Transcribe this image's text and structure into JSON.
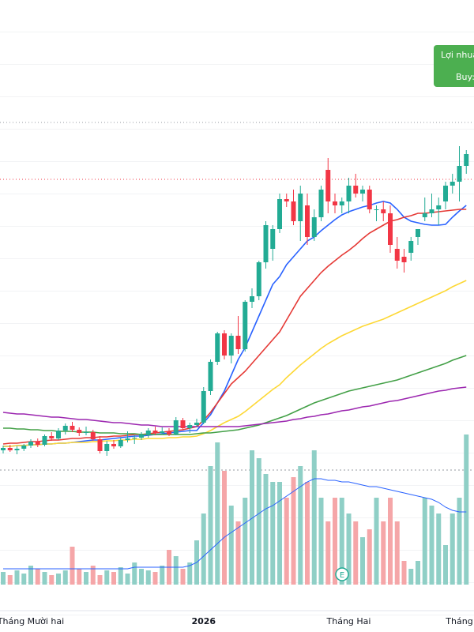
{
  "chart_data": {
    "type": "candlestick",
    "up_color": "#22ab94",
    "down_color": "#f23645",
    "volume_up_color": "#8fcfc6",
    "volume_down_color": "#f5a6a8",
    "ylim": [
      0,
      60
    ],
    "volume_ylim": [
      0,
      370
    ],
    "categories": [
      null,
      null,
      null,
      null,
      "Tháng Mười hai",
      null,
      null,
      null,
      null,
      null,
      null,
      null,
      null,
      null,
      null,
      null,
      null,
      null,
      null,
      null,
      null,
      null,
      null,
      null,
      null,
      null,
      null,
      null,
      null,
      "2026",
      null,
      null,
      null,
      null,
      null,
      null,
      null,
      null,
      null,
      null,
      null,
      null,
      null,
      null,
      null,
      null,
      null,
      null,
      null,
      null,
      "Tháng Hai",
      null,
      null,
      null,
      null,
      null,
      null,
      null,
      null,
      null,
      null,
      null,
      null,
      null,
      null,
      null,
      "Tháng",
      null
    ],
    "ohlc": [
      [
        3.0,
        3.6,
        2.6,
        3.3
      ],
      [
        3.3,
        3.7,
        2.8,
        3.0
      ],
      [
        3.0,
        3.5,
        2.5,
        3.2
      ],
      [
        3.2,
        3.8,
        2.9,
        3.6
      ],
      [
        3.6,
        4.4,
        3.3,
        4.1
      ],
      [
        4.1,
        4.5,
        3.4,
        3.7
      ],
      [
        3.7,
        5.0,
        3.5,
        4.8
      ],
      [
        4.8,
        5.3,
        4.2,
        4.5
      ],
      [
        4.5,
        5.8,
        4.3,
        5.5
      ],
      [
        5.5,
        6.4,
        5.0,
        6.1
      ],
      [
        6.1,
        6.6,
        5.3,
        5.6
      ],
      [
        5.6,
        5.9,
        4.8,
        5.2
      ],
      [
        5.2,
        6.0,
        4.9,
        5.3
      ],
      [
        5.3,
        5.6,
        4.2,
        4.4
      ],
      [
        4.4,
        4.8,
        2.6,
        2.9
      ],
      [
        2.9,
        4.2,
        2.3,
        3.8
      ],
      [
        3.8,
        4.3,
        3.2,
        3.5
      ],
      [
        3.5,
        4.6,
        3.3,
        4.3
      ],
      [
        4.3,
        5.4,
        4.0,
        4.5
      ],
      [
        4.5,
        4.9,
        3.8,
        4.6
      ],
      [
        4.6,
        5.3,
        4.3,
        5.0
      ],
      [
        5.0,
        5.8,
        4.6,
        5.5
      ],
      [
        5.5,
        6.0,
        4.9,
        5.2
      ],
      [
        5.2,
        5.9,
        5.0,
        5.4
      ],
      [
        5.4,
        5.8,
        4.8,
        5.0
      ],
      [
        5.0,
        7.2,
        4.9,
        6.8
      ],
      [
        6.8,
        7.1,
        5.6,
        5.8
      ],
      [
        5.8,
        6.5,
        5.2,
        6.2
      ],
      [
        6.2,
        7.0,
        5.9,
        6.5
      ],
      [
        6.5,
        11.0,
        6.3,
        10.5
      ],
      [
        10.5,
        14.5,
        10.0,
        14.2
      ],
      [
        14.2,
        18.0,
        13.8,
        17.8
      ],
      [
        17.8,
        18.2,
        14.5,
        15.0
      ],
      [
        15.0,
        17.8,
        14.0,
        17.5
      ],
      [
        17.5,
        20.0,
        15.2,
        15.8
      ],
      [
        15.8,
        22.0,
        15.5,
        21.8
      ],
      [
        21.8,
        23.5,
        21.0,
        22.5
      ],
      [
        22.5,
        27.0,
        22.0,
        26.8
      ],
      [
        26.8,
        32.0,
        26.0,
        31.5
      ],
      [
        28.5,
        31.5,
        27.0,
        31.0
      ],
      [
        31.0,
        35.5,
        30.5,
        34.8
      ],
      [
        34.8,
        35.5,
        33.8,
        34.5
      ],
      [
        34.5,
        36.0,
        31.5,
        32.0
      ],
      [
        32.0,
        36.5,
        29.5,
        35.5
      ],
      [
        34.0,
        35.5,
        29.0,
        30.0
      ],
      [
        30.0,
        33.5,
        29.5,
        32.5
      ],
      [
        32.5,
        36.5,
        32.0,
        36.0
      ],
      [
        38.5,
        40.0,
        33.0,
        34.5
      ],
      [
        34.5,
        35.5,
        33.0,
        34.0
      ],
      [
        34.0,
        35.0,
        33.0,
        34.5
      ],
      [
        34.5,
        37.5,
        33.0,
        36.5
      ],
      [
        36.5,
        38.0,
        35.0,
        35.5
      ],
      [
        35.5,
        36.5,
        34.5,
        36.0
      ],
      [
        36.0,
        36.5,
        33.0,
        33.5
      ],
      [
        33.5,
        34.0,
        32.0,
        33.5
      ],
      [
        33.5,
        34.5,
        32.0,
        33.0
      ],
      [
        33.0,
        34.0,
        28.0,
        29.0
      ],
      [
        28.5,
        30.0,
        26.0,
        27.0
      ],
      [
        27.5,
        28.5,
        25.5,
        26.8
      ],
      [
        28.0,
        30.0,
        27.0,
        29.5
      ],
      [
        30.0,
        31.0,
        29.0,
        31.0
      ],
      [
        32.5,
        35.0,
        32.0,
        33.0
      ],
      [
        33.0,
        35.5,
        32.5,
        33.5
      ],
      [
        33.5,
        35.0,
        31.5,
        34.0
      ],
      [
        34.5,
        37.0,
        33.5,
        36.5
      ],
      [
        36.5,
        38.0,
        35.5,
        37.0
      ],
      [
        37.0,
        41.5,
        34.5,
        39.0
      ],
      [
        39.0,
        41.0,
        38.0,
        40.5
      ]
    ],
    "volume": [
      8,
      6,
      9,
      7,
      12,
      10,
      8,
      6,
      7,
      9,
      24,
      10,
      8,
      12,
      6,
      9,
      8,
      11,
      7,
      14,
      10,
      9,
      8,
      12,
      22,
      18,
      10,
      14,
      28,
      45,
      75,
      90,
      72,
      50,
      40,
      55,
      85,
      80,
      70,
      65,
      65,
      55,
      68,
      75,
      65,
      85,
      55,
      40,
      55,
      55,
      45,
      40,
      30,
      35,
      55,
      40,
      55,
      40,
      15,
      10,
      15,
      55,
      50,
      45,
      25,
      45,
      55,
      95
    ],
    "series": [
      {
        "color": "#2962ff",
        "values": [
          3.5,
          3.5,
          3.6,
          3.6,
          3.7,
          3.7,
          3.8,
          3.8,
          3.9,
          3.9,
          4.0,
          4.1,
          4.2,
          4.3,
          4.3,
          4.4,
          4.5,
          4.6,
          4.7,
          4.8,
          4.8,
          4.9,
          5.0,
          5.1,
          5.2,
          5.3,
          5.4,
          5.5,
          5.5,
          6.5,
          7.5,
          9.0,
          10.5,
          12.5,
          14.5,
          16.0,
          18.0,
          20.0,
          22.0,
          24.0,
          25.0,
          26.5,
          27.5,
          28.5,
          29.5,
          30.0,
          30.8,
          31.5,
          32.2,
          32.8,
          33.2,
          33.5,
          33.8,
          34.0,
          34.3,
          34.5,
          34.3,
          33.5,
          32.5,
          32.0,
          31.8,
          31.6,
          31.5,
          31.5,
          31.6,
          32.5,
          33.3,
          34.0
        ]
      },
      {
        "color": "#e53935",
        "values": [
          3.8,
          3.9,
          3.9,
          4.0,
          4.1,
          4.1,
          4.2,
          4.3,
          4.3,
          4.4,
          4.5,
          4.5,
          4.6,
          4.6,
          4.7,
          4.7,
          4.8,
          4.8,
          4.9,
          5.0,
          5.0,
          5.1,
          5.2,
          5.3,
          5.4,
          5.5,
          5.6,
          5.8,
          6.0,
          6.8,
          7.8,
          9.0,
          10.2,
          11.4,
          12.2,
          13.0,
          14.0,
          15.0,
          16.0,
          17.0,
          18.0,
          19.5,
          21.0,
          22.5,
          23.5,
          24.5,
          25.5,
          26.3,
          27.0,
          27.7,
          28.3,
          29.0,
          29.8,
          30.5,
          31.0,
          31.5,
          32.0,
          32.2,
          32.5,
          32.7,
          33.0,
          33.0,
          33.1,
          33.2,
          33.3,
          33.4,
          33.5,
          33.5
        ]
      },
      {
        "color": "#fdd835",
        "values": [
          3.5,
          3.5,
          3.6,
          3.6,
          3.7,
          3.7,
          3.8,
          3.8,
          3.9,
          3.9,
          4.0,
          4.0,
          4.0,
          4.1,
          4.1,
          4.2,
          4.2,
          4.3,
          4.3,
          4.4,
          4.4,
          4.5,
          4.5,
          4.5,
          4.6,
          4.6,
          4.7,
          4.7,
          4.8,
          5.1,
          5.5,
          6.0,
          6.5,
          6.9,
          7.3,
          7.9,
          8.6,
          9.3,
          10.0,
          10.7,
          11.3,
          12.2,
          13.0,
          13.8,
          14.5,
          15.2,
          15.9,
          16.5,
          17.0,
          17.5,
          17.9,
          18.3,
          18.7,
          19.0,
          19.3,
          19.6,
          20.0,
          20.4,
          20.8,
          21.2,
          21.6,
          22.0,
          22.4,
          22.8,
          23.2,
          23.7,
          24.1,
          24.5
        ]
      },
      {
        "color": "#43a047",
        "values": [
          5.8,
          5.8,
          5.7,
          5.7,
          5.6,
          5.6,
          5.5,
          5.5,
          5.4,
          5.4,
          5.4,
          5.3,
          5.3,
          5.3,
          5.2,
          5.2,
          5.2,
          5.1,
          5.1,
          5.1,
          5.0,
          5.0,
          5.0,
          5.0,
          5.0,
          5.0,
          5.0,
          5.0,
          5.1,
          5.2,
          5.2,
          5.3,
          5.4,
          5.5,
          5.6,
          5.8,
          6.0,
          6.2,
          6.5,
          6.8,
          7.1,
          7.4,
          7.8,
          8.2,
          8.6,
          9.0,
          9.3,
          9.6,
          9.9,
          10.2,
          10.5,
          10.7,
          10.9,
          11.1,
          11.3,
          11.5,
          11.7,
          11.9,
          12.2,
          12.5,
          12.8,
          13.1,
          13.4,
          13.7,
          14.0,
          14.4,
          14.7,
          15.0
        ]
      },
      {
        "color": "#9c27b0",
        "values": [
          7.8,
          7.7,
          7.6,
          7.6,
          7.5,
          7.4,
          7.3,
          7.2,
          7.2,
          7.1,
          7.0,
          6.9,
          6.9,
          6.8,
          6.7,
          6.6,
          6.5,
          6.5,
          6.4,
          6.3,
          6.2,
          6.2,
          6.1,
          6.0,
          6.0,
          6.0,
          6.0,
          6.0,
          6.0,
          6.0,
          6.0,
          6.0,
          6.0,
          6.0,
          6.0,
          6.1,
          6.2,
          6.3,
          6.4,
          6.5,
          6.6,
          6.7,
          6.9,
          7.0,
          7.2,
          7.3,
          7.5,
          7.6,
          7.8,
          8.0,
          8.1,
          8.3,
          8.5,
          8.6,
          8.8,
          9.0,
          9.2,
          9.3,
          9.5,
          9.7,
          9.9,
          10.1,
          10.3,
          10.5,
          10.6,
          10.8,
          10.9,
          11.0
        ]
      }
    ],
    "volume_ma": {
      "color": "#2962ff",
      "values": [
        10,
        10,
        10,
        10,
        10,
        10,
        10,
        10,
        10,
        10,
        10,
        10,
        10,
        10,
        10,
        10,
        10,
        10,
        10,
        11,
        11,
        11,
        11,
        11,
        11,
        11,
        11,
        12,
        14,
        18,
        22,
        26,
        30,
        33,
        36,
        39,
        42,
        45,
        48,
        50,
        53,
        56,
        59,
        62,
        65,
        67,
        67,
        66,
        66,
        65,
        65,
        64,
        63,
        62,
        62,
        61,
        60,
        59,
        58,
        57,
        56,
        55,
        54,
        52,
        49,
        47,
        46,
        46
      ]
    },
    "price_levels": [
      {
        "value": 44.5,
        "color": "#9598a1"
      },
      {
        "value": 37.3,
        "color": "#f23645"
      }
    ],
    "trade_label": {
      "title": "Lợi nhuậ",
      "text": "Buy:",
      "color": "#4caf50"
    },
    "event_marker": "E"
  }
}
